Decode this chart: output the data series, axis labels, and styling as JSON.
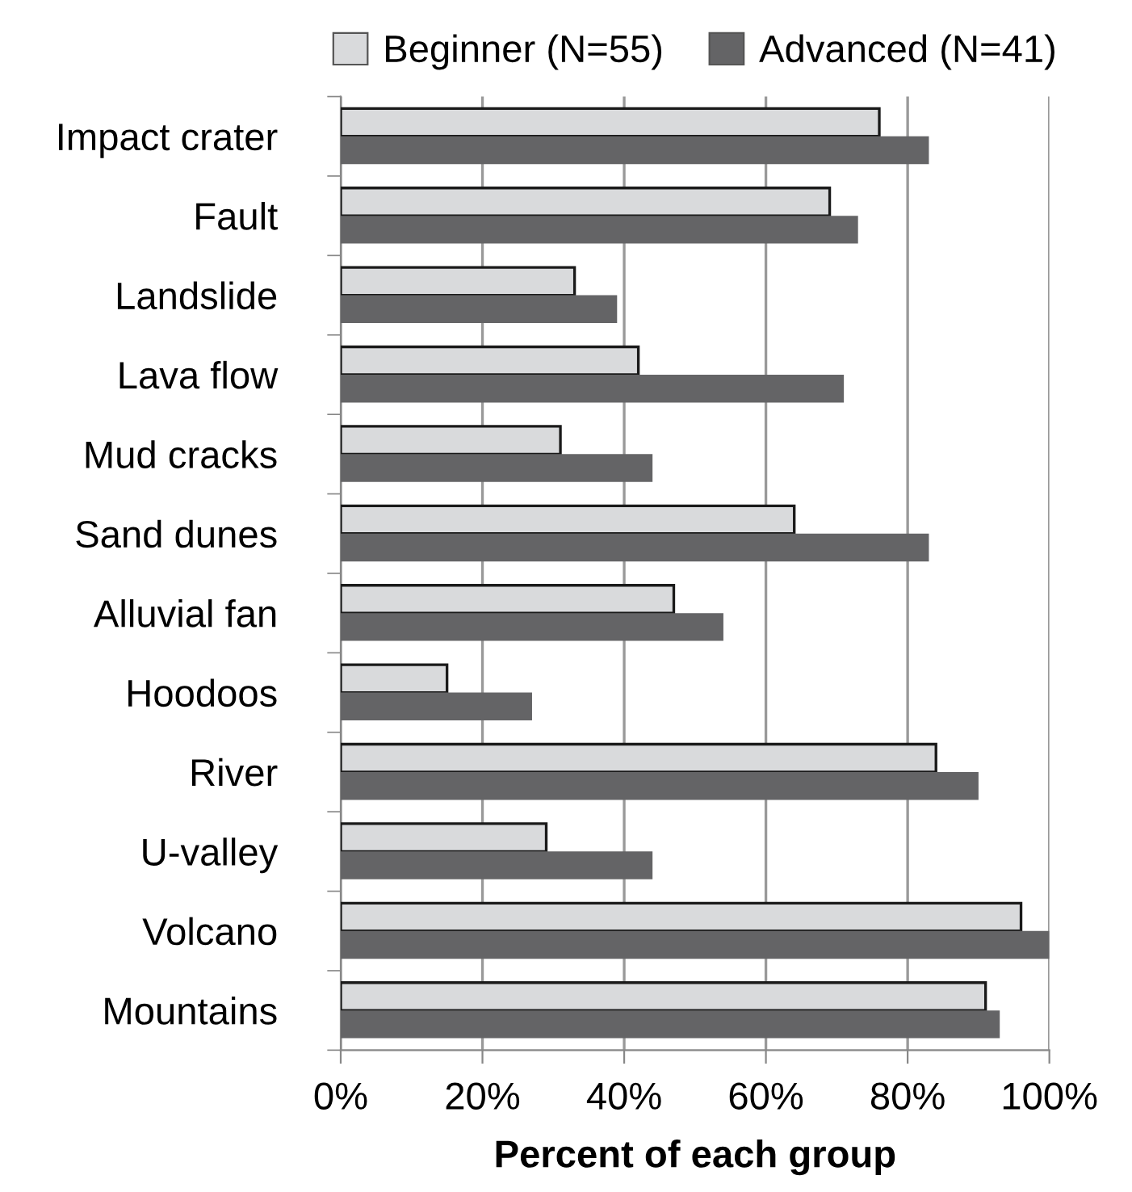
{
  "chart_data": {
    "type": "bar",
    "orientation": "horizontal",
    "xlabel": "Percent of each group",
    "categories": [
      "Impact crater",
      "Fault",
      "Landslide",
      "Lava flow",
      "Mud cracks",
      "Sand dunes",
      "Alluvial fan",
      "Hoodoos",
      "River",
      "U-valley",
      "Volcano",
      "Mountains"
    ],
    "series": [
      {
        "name": "Beginner (N=55)",
        "color": "#d9dadc",
        "values": [
          76,
          69,
          33,
          42,
          31,
          64,
          47,
          15,
          84,
          29,
          96,
          91
        ]
      },
      {
        "name": "Advanced (N=41)",
        "color": "#646466",
        "values": [
          83,
          73,
          39,
          71,
          44,
          83,
          54,
          27,
          90,
          44,
          100,
          93
        ]
      }
    ],
    "xlim": [
      0,
      100
    ],
    "xticks": [
      {
        "value": 0,
        "label": "0%"
      },
      {
        "value": 20,
        "label": "20%"
      },
      {
        "value": 40,
        "label": "40%"
      },
      {
        "value": 60,
        "label": "60%"
      },
      {
        "value": 80,
        "label": "80%"
      },
      {
        "value": 100,
        "label": "100%"
      }
    ],
    "grid": "x",
    "legend": "top"
  }
}
